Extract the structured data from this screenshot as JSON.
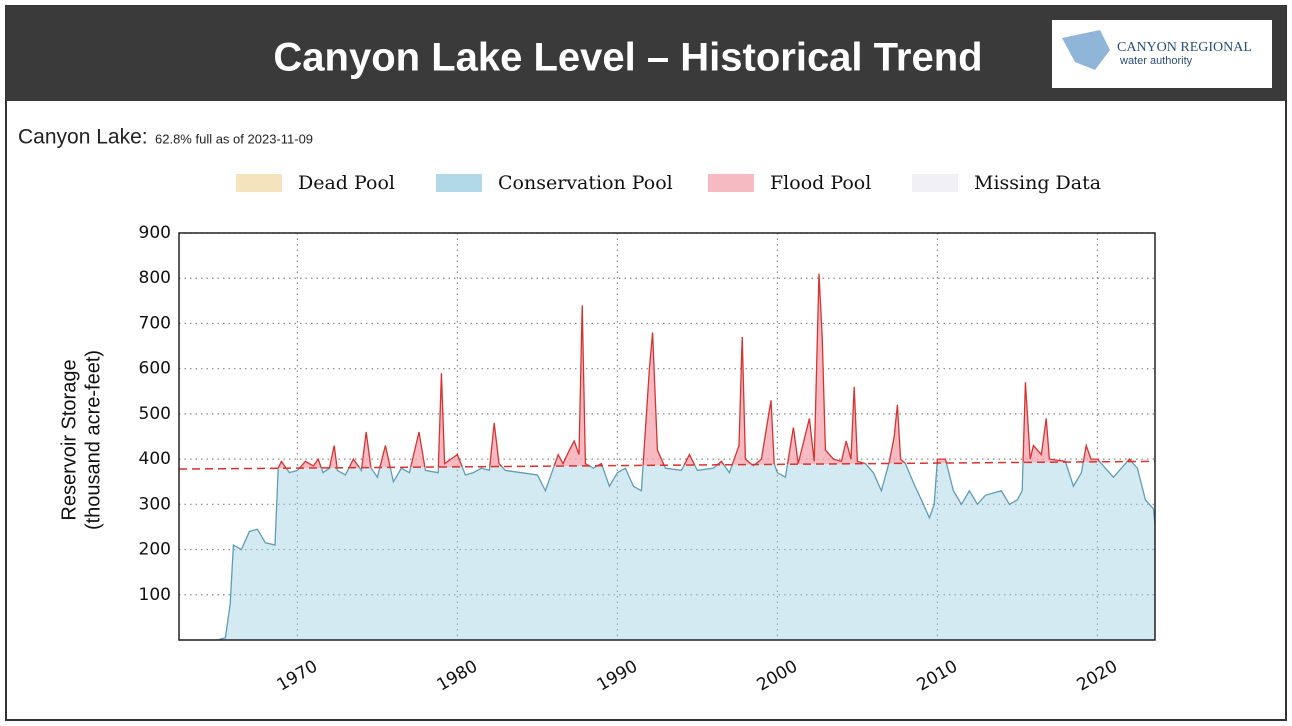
{
  "header": {
    "title": "Canyon Lake Level – Historical Trend",
    "logo_line1": "CANYON REGIONAL",
    "logo_line2": "water authority"
  },
  "chart_data": {
    "type": "area",
    "subtitle_label": "Canyon Lake:",
    "subtitle": "62.8% full as of 2023-11-09",
    "y_label": [
      "Reservoir Storage",
      "(thousand acre-feet)"
    ],
    "legend": [
      {
        "name": "Dead Pool",
        "color": "#f2dcae"
      },
      {
        "name": "Conservation Pool",
        "color": "#9fd0e2"
      },
      {
        "name": "Flood Pool",
        "color": "#f4a9b4"
      },
      {
        "name": "Missing Data",
        "color": "#ececf4"
      }
    ],
    "conservation_line": {
      "color": "#d8322f",
      "x": [
        1962.6,
        2023.6
      ],
      "values": [
        378,
        395
      ]
    },
    "x": [
      1962.6,
      1965,
      1965.5,
      1965.8,
      1966,
      1966.5,
      1967,
      1967.5,
      1968,
      1968.6,
      1968.8,
      1969,
      1969.5,
      1970,
      1970.5,
      1971,
      1971.3,
      1971.6,
      1972,
      1972.3,
      1972.5,
      1973,
      1973.5,
      1974,
      1974.3,
      1974.6,
      1975,
      1975.5,
      1976,
      1976.5,
      1977,
      1977.6,
      1978,
      1978.8,
      1979,
      1979.2,
      1979.6,
      1980,
      1980.5,
      1981,
      1981.5,
      1982,
      1982.3,
      1982.6,
      1983,
      1984,
      1985,
      1985.5,
      1986,
      1986.3,
      1986.6,
      1987,
      1987.3,
      1987.6,
      1987.8,
      1988,
      1988.5,
      1989,
      1989.5,
      1990,
      1990.5,
      1991,
      1991.5,
      1992,
      1992.2,
      1992.5,
      1993,
      1994,
      1994.5,
      1995,
      1996,
      1996.5,
      1997,
      1997.6,
      1997.8,
      1998,
      1998.5,
      1999,
      1999.6,
      1999.8,
      2000,
      2000.5,
      2001,
      2001.3,
      2002,
      2002.3,
      2002.6,
      2002.8,
      2003,
      2003.5,
      2004,
      2004.3,
      2004.6,
      2004.8,
      2005,
      2005.5,
      2006,
      2006.5,
      2007,
      2007.3,
      2007.5,
      2007.7,
      2008,
      2008.6,
      2009,
      2009.5,
      2009.8,
      2010,
      2010.5,
      2011,
      2011.5,
      2012,
      2012.5,
      2013,
      2014,
      2014.5,
      2015,
      2015.3,
      2015.5,
      2015.8,
      2016,
      2016.5,
      2016.8,
      2017,
      2018,
      2018.5,
      2019,
      2019.3,
      2019.6,
      2020,
      2020.5,
      2021,
      2021.5,
      2022,
      2022.5,
      2023,
      2023.5,
      2023.6
    ],
    "values": [
      0,
      0,
      5,
      80,
      210,
      200,
      240,
      245,
      215,
      210,
      380,
      395,
      370,
      375,
      395,
      385,
      400,
      370,
      380,
      430,
      375,
      365,
      400,
      375,
      460,
      380,
      360,
      430,
      350,
      380,
      370,
      460,
      375,
      370,
      590,
      390,
      400,
      410,
      365,
      370,
      380,
      375,
      480,
      390,
      375,
      370,
      365,
      330,
      380,
      410,
      390,
      420,
      440,
      410,
      740,
      390,
      380,
      390,
      340,
      370,
      380,
      340,
      330,
      600,
      680,
      420,
      380,
      375,
      410,
      375,
      380,
      395,
      370,
      430,
      670,
      400,
      385,
      400,
      530,
      390,
      370,
      360,
      470,
      390,
      490,
      395,
      810,
      670,
      420,
      400,
      395,
      440,
      400,
      560,
      395,
      390,
      370,
      330,
      395,
      450,
      520,
      400,
      390,
      340,
      310,
      270,
      300,
      400,
      400,
      330,
      300,
      330,
      300,
      320,
      330,
      300,
      310,
      330,
      570,
      400,
      430,
      410,
      490,
      400,
      395,
      340,
      370,
      430,
      400,
      400,
      380,
      360,
      380,
      400,
      380,
      310,
      290,
      255
    ],
    "xlim": [
      1962.6,
      2023.6
    ],
    "xticks": [
      1970,
      1980,
      1990,
      2000,
      2010,
      2020
    ],
    "ylim": [
      0,
      900
    ],
    "yticks": [
      100,
      200,
      300,
      400,
      500,
      600,
      700,
      800,
      900
    ],
    "grid": true
  }
}
